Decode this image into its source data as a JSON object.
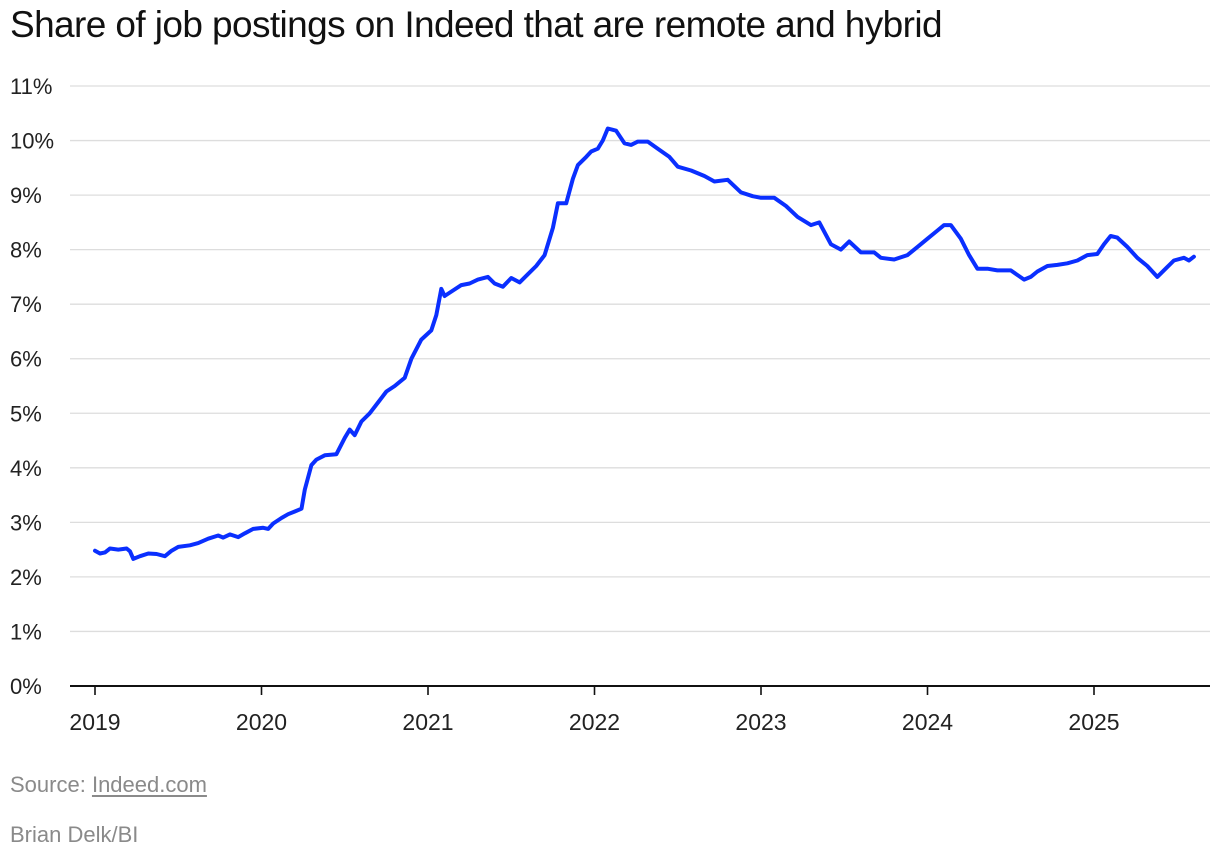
{
  "title": "Share of job postings on Indeed that are remote and hybrid",
  "source_label": "Source:",
  "source_link": "Indeed.com",
  "credit": "Brian Delk/BI",
  "line_color": "#0a2fff",
  "chart_data": {
    "type": "line",
    "title": "Share of job postings on Indeed that are remote and hybrid",
    "xlabel": "",
    "ylabel": "",
    "ylim": [
      0,
      11
    ],
    "xlim": [
      2019.0,
      2025.67
    ],
    "y_ticks": [
      "0%",
      "1%",
      "2%",
      "3%",
      "4%",
      "5%",
      "6%",
      "7%",
      "8%",
      "9%",
      "10%",
      "11%"
    ],
    "x_ticks": [
      "2019",
      "2020",
      "2021",
      "2022",
      "2023",
      "2024",
      "2025"
    ],
    "grid": "horizontal",
    "series": [
      {
        "values": [
          [
            2019.0,
            2.48
          ],
          [
            2019.03,
            2.43
          ],
          [
            2019.06,
            2.45
          ],
          [
            2019.09,
            2.52
          ],
          [
            2019.14,
            2.5
          ],
          [
            2019.19,
            2.52
          ],
          [
            2019.21,
            2.47
          ],
          [
            2019.23,
            2.33
          ],
          [
            2019.27,
            2.38
          ],
          [
            2019.32,
            2.43
          ],
          [
            2019.37,
            2.42
          ],
          [
            2019.42,
            2.38
          ],
          [
            2019.46,
            2.48
          ],
          [
            2019.5,
            2.55
          ],
          [
            2019.57,
            2.58
          ],
          [
            2019.62,
            2.62
          ],
          [
            2019.68,
            2.7
          ],
          [
            2019.74,
            2.76
          ],
          [
            2019.77,
            2.72
          ],
          [
            2019.81,
            2.78
          ],
          [
            2019.86,
            2.73
          ],
          [
            2019.9,
            2.8
          ],
          [
            2019.95,
            2.88
          ],
          [
            2020.01,
            2.9
          ],
          [
            2020.04,
            2.88
          ],
          [
            2020.07,
            2.98
          ],
          [
            2020.12,
            3.08
          ],
          [
            2020.16,
            3.15
          ],
          [
            2020.2,
            3.2
          ],
          [
            2020.24,
            3.25
          ],
          [
            2020.26,
            3.6
          ],
          [
            2020.3,
            4.05
          ],
          [
            2020.33,
            4.15
          ],
          [
            2020.38,
            4.23
          ],
          [
            2020.45,
            4.25
          ],
          [
            2020.5,
            4.55
          ],
          [
            2020.53,
            4.7
          ],
          [
            2020.56,
            4.6
          ],
          [
            2020.6,
            4.85
          ],
          [
            2020.65,
            5.0
          ],
          [
            2020.7,
            5.2
          ],
          [
            2020.75,
            5.4
          ],
          [
            2020.8,
            5.5
          ],
          [
            2020.86,
            5.65
          ],
          [
            2020.9,
            6.0
          ],
          [
            2020.96,
            6.35
          ],
          [
            2021.02,
            6.52
          ],
          [
            2021.05,
            6.8
          ],
          [
            2021.08,
            7.28
          ],
          [
            2021.1,
            7.15
          ],
          [
            2021.15,
            7.25
          ],
          [
            2021.2,
            7.35
          ],
          [
            2021.25,
            7.38
          ],
          [
            2021.3,
            7.45
          ],
          [
            2021.36,
            7.5
          ],
          [
            2021.4,
            7.38
          ],
          [
            2021.45,
            7.32
          ],
          [
            2021.5,
            7.48
          ],
          [
            2021.55,
            7.4
          ],
          [
            2021.6,
            7.55
          ],
          [
            2021.65,
            7.7
          ],
          [
            2021.7,
            7.9
          ],
          [
            2021.75,
            8.4
          ],
          [
            2021.78,
            8.85
          ],
          [
            2021.83,
            8.85
          ],
          [
            2021.87,
            9.3
          ],
          [
            2021.9,
            9.55
          ],
          [
            2021.95,
            9.7
          ],
          [
            2021.98,
            9.8
          ],
          [
            2022.02,
            9.85
          ],
          [
            2022.05,
            10.0
          ],
          [
            2022.08,
            10.22
          ],
          [
            2022.13,
            10.18
          ],
          [
            2022.18,
            9.95
          ],
          [
            2022.22,
            9.92
          ],
          [
            2022.26,
            9.98
          ],
          [
            2022.32,
            9.98
          ],
          [
            2022.38,
            9.85
          ],
          [
            2022.45,
            9.7
          ],
          [
            2022.5,
            9.52
          ],
          [
            2022.58,
            9.45
          ],
          [
            2022.66,
            9.35
          ],
          [
            2022.72,
            9.25
          ],
          [
            2022.8,
            9.28
          ],
          [
            2022.88,
            9.05
          ],
          [
            2022.95,
            8.98
          ],
          [
            2023.0,
            8.95
          ],
          [
            2023.08,
            8.95
          ],
          [
            2023.15,
            8.8
          ],
          [
            2023.22,
            8.6
          ],
          [
            2023.3,
            8.45
          ],
          [
            2023.35,
            8.5
          ],
          [
            2023.42,
            8.1
          ],
          [
            2023.48,
            8.0
          ],
          [
            2023.53,
            8.15
          ],
          [
            2023.6,
            7.95
          ],
          [
            2023.68,
            7.95
          ],
          [
            2023.72,
            7.85
          ],
          [
            2023.8,
            7.82
          ],
          [
            2023.88,
            7.9
          ],
          [
            2023.94,
            8.05
          ],
          [
            2024.0,
            8.2
          ],
          [
            2024.06,
            8.35
          ],
          [
            2024.1,
            8.45
          ],
          [
            2024.14,
            8.45
          ],
          [
            2024.2,
            8.2
          ],
          [
            2024.25,
            7.9
          ],
          [
            2024.3,
            7.65
          ],
          [
            2024.36,
            7.65
          ],
          [
            2024.42,
            7.62
          ],
          [
            2024.5,
            7.62
          ],
          [
            2024.58,
            7.45
          ],
          [
            2024.62,
            7.5
          ],
          [
            2024.66,
            7.6
          ],
          [
            2024.72,
            7.7
          ],
          [
            2024.78,
            7.72
          ],
          [
            2024.84,
            7.75
          ],
          [
            2024.9,
            7.8
          ],
          [
            2024.96,
            7.9
          ],
          [
            2025.02,
            7.92
          ],
          [
            2025.06,
            8.1
          ],
          [
            2025.1,
            8.25
          ],
          [
            2025.14,
            8.22
          ],
          [
            2025.2,
            8.05
          ],
          [
            2025.26,
            7.85
          ],
          [
            2025.32,
            7.7
          ],
          [
            2025.38,
            7.5
          ],
          [
            2025.43,
            7.65
          ],
          [
            2025.48,
            7.8
          ],
          [
            2025.54,
            7.85
          ],
          [
            2025.57,
            7.8
          ],
          [
            2025.6,
            7.87
          ]
        ]
      }
    ]
  }
}
